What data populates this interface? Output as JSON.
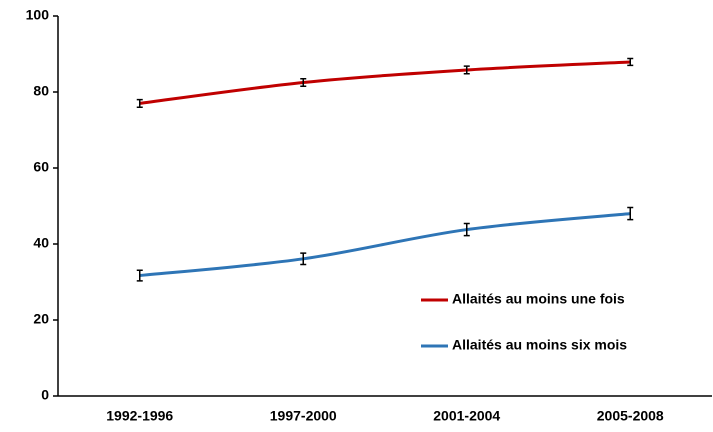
{
  "chart_data": {
    "type": "line",
    "categories": [
      "1992-1996",
      "1997-2000",
      "2001-2004",
      "2005-2008"
    ],
    "series": [
      {
        "name": "Allaités au moins une fois",
        "color": "#c00000",
        "values": [
          77,
          82.5,
          85.8,
          87.9
        ],
        "errors": [
          1,
          1,
          1,
          0.9
        ]
      },
      {
        "name": "Allaités au moins six mois",
        "color": "#2e75b6",
        "values": [
          31.7,
          36.1,
          43.8,
          48
        ],
        "errors": [
          1.4,
          1.5,
          1.6,
          1.6
        ]
      }
    ],
    "ylim": [
      0,
      100
    ],
    "yticks": [
      0,
      20,
      40,
      60,
      80,
      100
    ],
    "legend": "lower right"
  }
}
